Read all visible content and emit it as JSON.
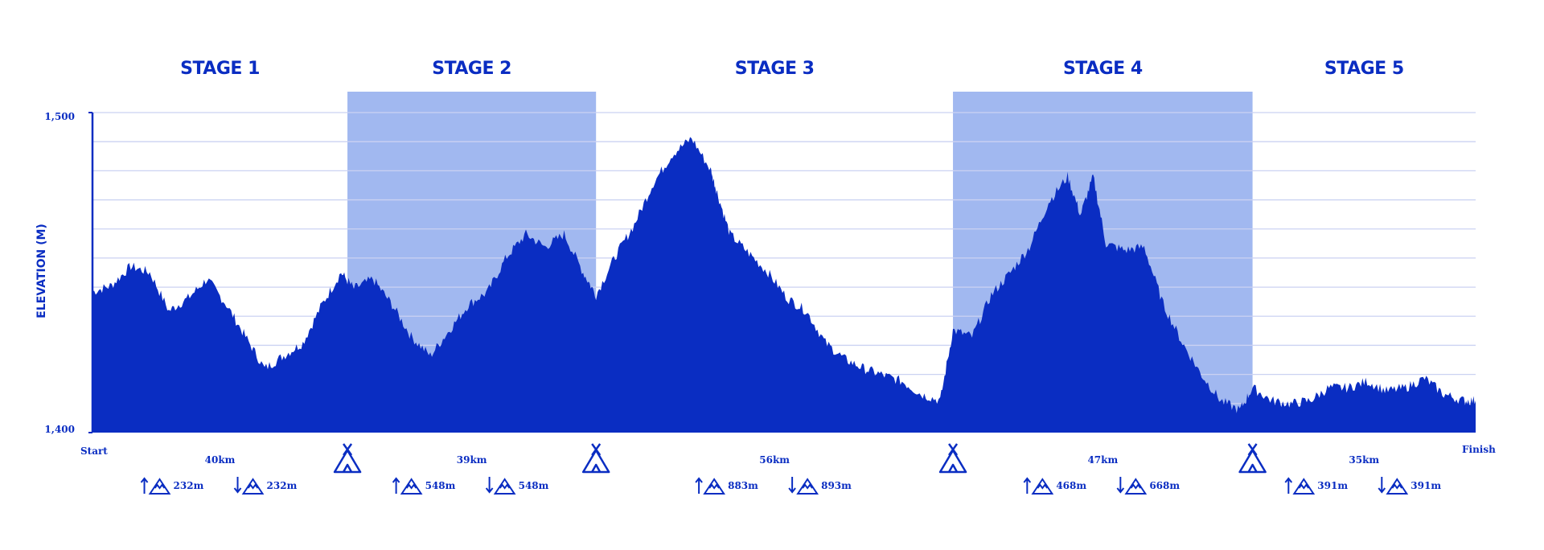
{
  "chart_data": {
    "type": "area",
    "ylabel": "ELEVATION (M)",
    "ylim": [
      1400,
      1500
    ],
    "yticks": [
      "1,500",
      "1,400"
    ],
    "x_start_label": "Start",
    "x_end_label": "Finish",
    "grid": true,
    "colors": {
      "main": "#0a2dc2",
      "highlight": "#a1b8f0",
      "grid": "#cbd2f2"
    },
    "stages": [
      {
        "name": "STAGE 1",
        "distance": "40km",
        "ascent": "232m",
        "descent": "232m",
        "highlighted": false,
        "x_range": [
          0,
          40
        ]
      },
      {
        "name": "STAGE 2",
        "distance": "39km",
        "ascent": "548m",
        "descent": "548m",
        "highlighted": true,
        "x_range": [
          40,
          79
        ]
      },
      {
        "name": "STAGE 3",
        "distance": "56km",
        "ascent": "883m",
        "descent": "893m",
        "highlighted": false,
        "x_range": [
          79,
          135
        ]
      },
      {
        "name": "STAGE 4",
        "distance": "47km",
        "ascent": "468m",
        "descent": "668m",
        "highlighted": true,
        "x_range": [
          135,
          182
        ]
      },
      {
        "name": "STAGE 5",
        "distance": "35km",
        "ascent": "391m",
        "descent": "391m",
        "highlighted": false,
        "x_range": [
          182,
          217
        ]
      }
    ],
    "camp_icons": [
      "camp-icon",
      "camp-icon",
      "camp-icon",
      "camp-icon"
    ],
    "x": [
      0,
      3,
      6,
      9,
      12,
      15,
      18,
      21,
      24,
      27,
      30,
      33,
      36,
      39,
      41,
      44,
      47,
      50,
      53,
      56,
      59,
      62,
      65,
      68,
      71,
      74,
      77,
      79,
      82,
      85,
      88,
      91,
      94,
      97,
      98,
      100,
      103,
      106,
      109,
      112,
      115,
      118,
      121,
      124,
      127,
      130,
      133,
      135,
      138,
      141,
      144,
      147,
      150,
      153,
      155,
      157,
      159,
      162,
      165,
      168,
      171,
      174,
      177,
      180,
      182,
      185,
      188,
      191,
      194,
      197,
      200,
      203,
      206,
      209,
      212,
      215,
      217
    ],
    "y": [
      1444,
      1446,
      1452,
      1450,
      1438,
      1442,
      1448,
      1440,
      1430,
      1420,
      1424,
      1428,
      1440,
      1450,
      1445,
      1448,
      1440,
      1430,
      1424,
      1432,
      1440,
      1444,
      1455,
      1462,
      1458,
      1462,
      1450,
      1443,
      1455,
      1465,
      1478,
      1487,
      1492,
      1482,
      1475,
      1462,
      1456,
      1450,
      1442,
      1438,
      1428,
      1423,
      1420,
      1418,
      1416,
      1412,
      1410,
      1432,
      1430,
      1443,
      1450,
      1458,
      1472,
      1480,
      1468,
      1480,
      1459,
      1457,
      1458,
      1440,
      1428,
      1418,
      1410,
      1407,
      1414,
      1410,
      1409,
      1410,
      1414,
      1414,
      1416,
      1413,
      1414,
      1417,
      1412,
      1410,
      1410
    ]
  }
}
